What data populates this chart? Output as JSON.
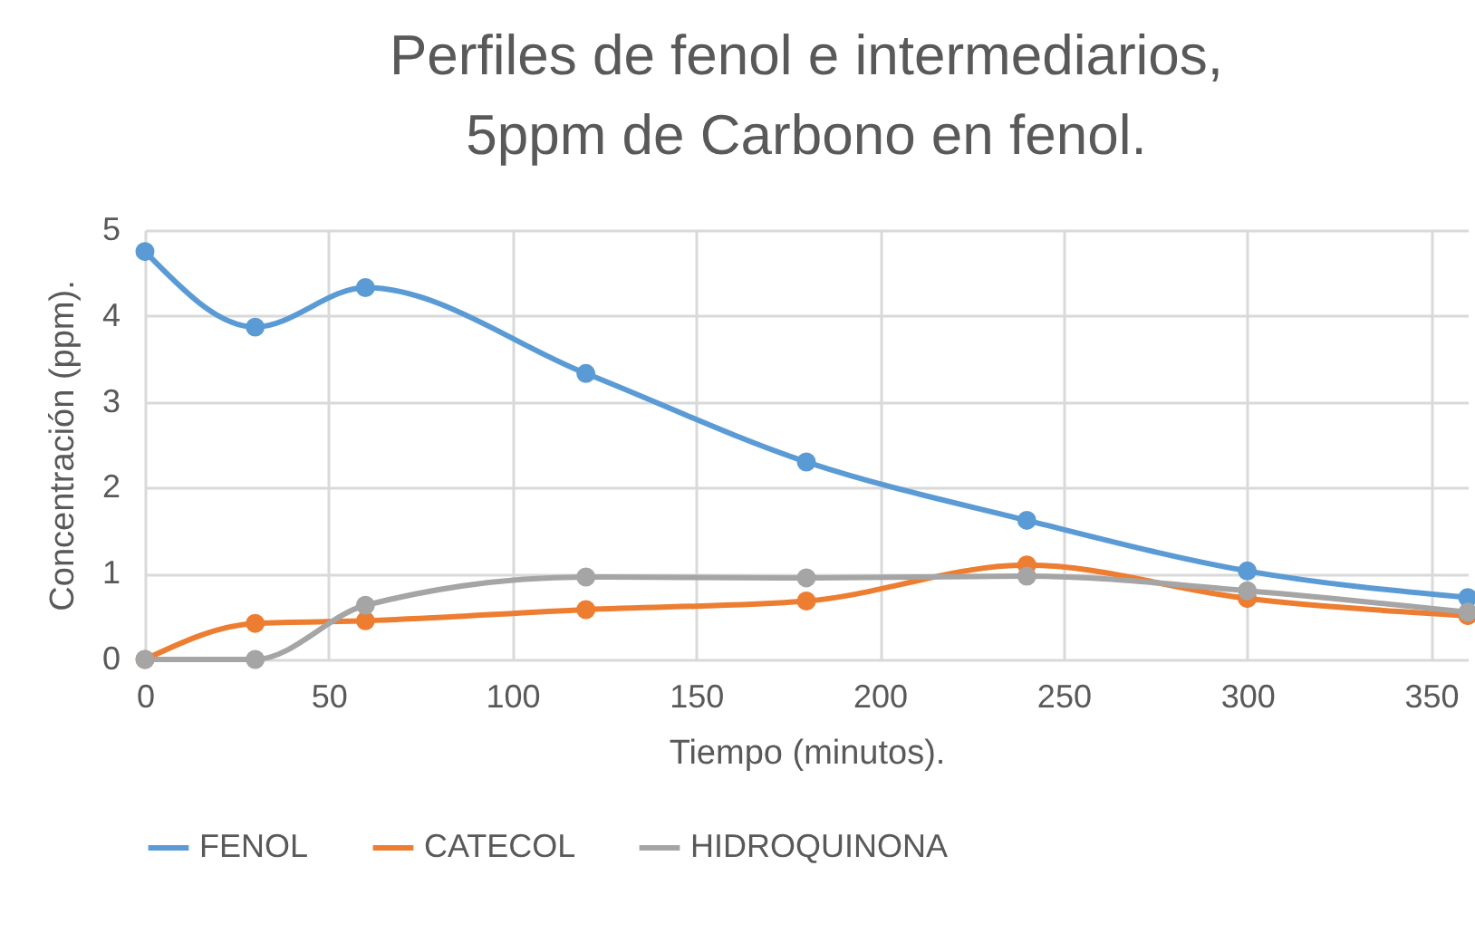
{
  "chart_data": {
    "type": "line",
    "title": "Perfiles de fenol e intermediarios, 5ppm de Carbono en fenol.",
    "xlabel": "Tiempo (minutos).",
    "ylabel": "Concentración (ppm).",
    "x": [
      0,
      30,
      60,
      120,
      180,
      240,
      300,
      360
    ],
    "series": [
      {
        "name": "FENOL",
        "color": "#5b9bd5",
        "values": [
          4.75,
          3.87,
          4.33,
          3.33,
          2.3,
          1.62,
          1.03,
          0.72
        ]
      },
      {
        "name": "CATECOL",
        "color": "#ed7d31",
        "values": [
          0,
          0.42,
          0.45,
          0.58,
          0.68,
          1.1,
          0.71,
          0.51
        ]
      },
      {
        "name": "HIDROQUINONA",
        "color": "#a5a5a5",
        "values": [
          0,
          0,
          0.63,
          0.96,
          0.95,
          0.97,
          0.8,
          0.55
        ]
      }
    ],
    "xlim": [
      0,
      360
    ],
    "xticks": [
      0,
      50,
      100,
      150,
      200,
      250,
      300,
      350
    ],
    "ylim": [
      0,
      5
    ],
    "yticks": [
      0,
      1,
      2,
      3,
      4,
      5
    ],
    "grid": true,
    "legend": "bottom",
    "marker": "circle",
    "line_style": "solid"
  }
}
